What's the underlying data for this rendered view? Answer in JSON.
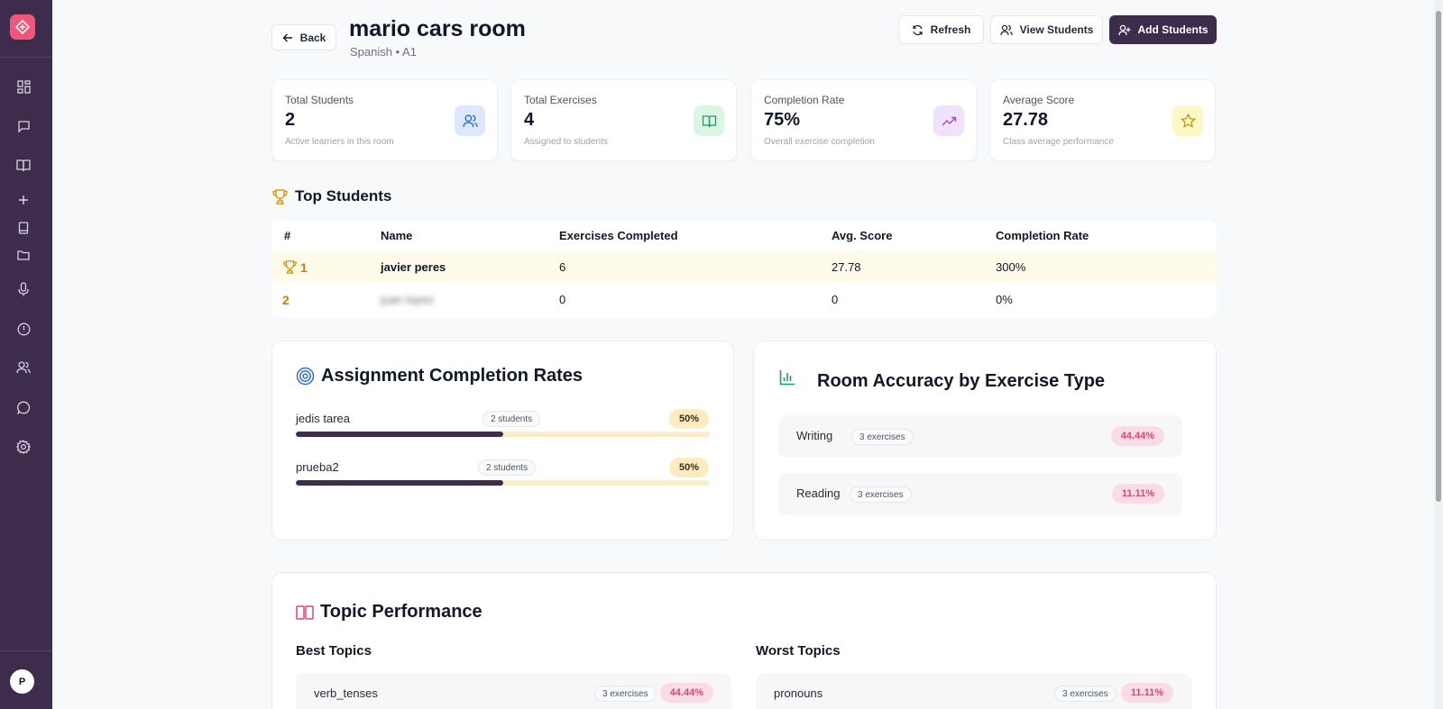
{
  "colors": {
    "sidebar": "#3e2c4d",
    "accent_pink": "#f0567c",
    "primary_button": "#3e2c4d"
  },
  "sidebar": {
    "avatar_initial": "P",
    "icons": [
      "dashboard-icon",
      "chat-icon",
      "book-icon",
      "plus-icon",
      "notebook-icon",
      "folder-icon",
      "microphone-icon",
      "alert-icon",
      "users-icon",
      "message-icon",
      "settings-icon"
    ]
  },
  "header": {
    "back_label": "Back",
    "title": "mario cars room",
    "subtitle": "Spanish • A1",
    "refresh_label": "Refresh",
    "view_students_label": "View Students",
    "add_students_label": "Add Students"
  },
  "stats": [
    {
      "label": "Total Students",
      "value": "2",
      "desc": "Active learners in this room",
      "icon": "users-icon"
    },
    {
      "label": "Total Exercises",
      "value": "4",
      "desc": "Assigned to students",
      "icon": "book-open-icon"
    },
    {
      "label": "Completion Rate",
      "value": "75%",
      "desc": "Overall exercise completion",
      "icon": "trending-up-icon"
    },
    {
      "label": "Average Score",
      "value": "27.78",
      "desc": "Class average performance",
      "icon": "star-icon"
    }
  ],
  "top_students": {
    "title": "Top Students",
    "columns": [
      "#",
      "Name",
      "Exercises Completed",
      "Avg. Score",
      "Completion Rate"
    ],
    "rows": [
      {
        "rank": "1",
        "name": "javier peres",
        "completed": "6",
        "avg": "27.78",
        "rate": "300%"
      },
      {
        "rank": "2",
        "name": "juan lopez",
        "completed": "0",
        "avg": "0",
        "rate": "0%"
      }
    ]
  },
  "assignments": {
    "title": "Assignment Completion Rates",
    "items": [
      {
        "name": "jedis tarea",
        "students": "2 students",
        "pct": "50%",
        "fraction": 0.5
      },
      {
        "name": "prueba2",
        "students": "2 students",
        "pct": "50%",
        "fraction": 0.5
      }
    ]
  },
  "accuracy": {
    "title": "Room Accuracy by Exercise Type",
    "items": [
      {
        "name": "Writing",
        "count": "3 exercises",
        "pct": "44.44%"
      },
      {
        "name": "Reading",
        "count": "3 exercises",
        "pct": "11.11%"
      }
    ]
  },
  "topics": {
    "title": "Topic Performance",
    "best_label": "Best Topics",
    "worst_label": "Worst Topics",
    "best": [
      {
        "name": "verb_tenses",
        "count": "3 exercises",
        "pct": "44.44%"
      }
    ],
    "worst": [
      {
        "name": "pronouns",
        "count": "3 exercises",
        "pct": "11.11%"
      }
    ]
  }
}
